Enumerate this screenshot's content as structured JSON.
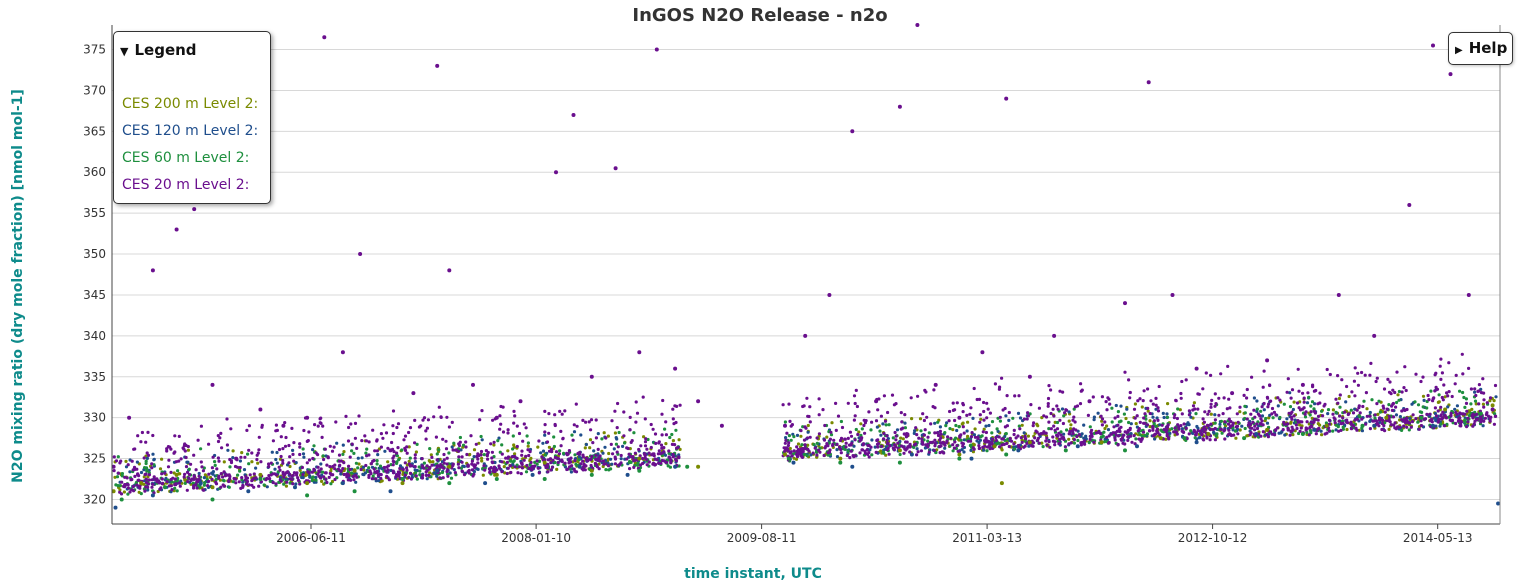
{
  "legend": {
    "title": "Legend",
    "toggle_icon": "triangle-down-icon"
  },
  "help": {
    "label": "Help",
    "toggle_icon": "triangle-right-icon"
  },
  "chart_data": {
    "type": "scatter",
    "title": "InGOS N2O Release - n2o",
    "xlabel": "time instant, UTC",
    "ylabel": "N2O mixing ratio (dry mole fraction) [nmol mol-1]",
    "xlim": [
      "2005-01-16",
      "2014-10-20"
    ],
    "ylim": [
      317,
      378
    ],
    "x_ticks": [
      "2006-06-11",
      "2008-01-10",
      "2009-08-11",
      "2011-03-13",
      "2012-10-12",
      "2014-05-13"
    ],
    "y_ticks": [
      320,
      325,
      330,
      335,
      340,
      345,
      350,
      355,
      360,
      365,
      370,
      375
    ],
    "grid": "horizontal",
    "legend_position": "top-left",
    "series": [
      {
        "name": "CES 200 m Level 2:",
        "color": "#7a8a00",
        "points": [
          [
            "2005-01-20",
            321.0
          ],
          [
            "2005-04-01",
            322.0
          ],
          [
            "2005-07-01",
            323.0
          ],
          [
            "2005-10-01",
            321.5
          ],
          [
            "2006-02-01",
            323.0
          ],
          [
            "2006-06-01",
            322.0
          ],
          [
            "2006-10-01",
            323.5
          ],
          [
            "2007-02-01",
            322.0
          ],
          [
            "2007-06-01",
            324.0
          ],
          [
            "2007-10-01",
            323.0
          ],
          [
            "2008-02-01",
            324.5
          ],
          [
            "2008-06-01",
            323.5
          ],
          [
            "2008-10-01",
            325.0
          ],
          [
            "2009-03-01",
            324.0
          ],
          [
            "2009-10-10",
            325.5
          ],
          [
            "2010-03-01",
            325.0
          ],
          [
            "2010-08-01",
            326.0
          ],
          [
            "2011-01-01",
            325.5
          ],
          [
            "2011-04-01",
            326.5
          ],
          [
            "2011-04-20",
            322.0
          ],
          [
            "2011-07-01",
            327.0
          ],
          [
            "2012-01-01",
            327.0
          ],
          [
            "2012-06-01",
            327.5
          ],
          [
            "2012-10-01",
            328.0
          ],
          [
            "2013-03-01",
            328.5
          ],
          [
            "2013-08-01",
            329.0
          ],
          [
            "2014-01-01",
            330.0
          ],
          [
            "2014-06-01",
            331.0
          ],
          [
            "2014-10-01",
            331.5
          ]
        ]
      },
      {
        "name": "CES 120 m Level 2:",
        "color": "#1f4e8c",
        "points": [
          [
            "2005-01-25",
            319.0
          ],
          [
            "2005-05-01",
            320.5
          ],
          [
            "2005-09-01",
            322.0
          ],
          [
            "2006-01-01",
            321.0
          ],
          [
            "2006-05-01",
            321.5
          ],
          [
            "2006-09-01",
            322.0
          ],
          [
            "2007-01-01",
            321.0
          ],
          [
            "2007-05-01",
            323.5
          ],
          [
            "2007-09-01",
            322.0
          ],
          [
            "2008-01-01",
            323.0
          ],
          [
            "2008-05-01",
            324.0
          ],
          [
            "2008-09-01",
            323.0
          ],
          [
            "2009-01-01",
            324.0
          ],
          [
            "2009-11-01",
            324.5
          ],
          [
            "2010-04-01",
            324.0
          ],
          [
            "2010-09-01",
            325.5
          ],
          [
            "2011-02-01",
            325.0
          ],
          [
            "2011-06-01",
            326.0
          ],
          [
            "2011-11-01",
            326.5
          ],
          [
            "2012-04-01",
            326.5
          ],
          [
            "2012-09-01",
            327.0
          ],
          [
            "2013-02-01",
            328.0
          ],
          [
            "2013-07-01",
            328.5
          ],
          [
            "2013-12-01",
            329.0
          ],
          [
            "2014-05-01",
            329.0
          ],
          [
            "2014-10-15",
            319.5
          ]
        ]
      },
      {
        "name": "CES 60 m Level 2:",
        "color": "#1e8f3e",
        "points": [
          [
            "2005-02-10",
            320.0
          ],
          [
            "2005-06-01",
            321.5
          ],
          [
            "2005-10-01",
            320.0
          ],
          [
            "2006-02-01",
            322.5
          ],
          [
            "2006-06-01",
            320.5
          ],
          [
            "2006-10-01",
            321.0
          ],
          [
            "2007-02-01",
            322.5
          ],
          [
            "2007-06-01",
            322.0
          ],
          [
            "2007-10-01",
            322.5
          ],
          [
            "2008-02-01",
            322.5
          ],
          [
            "2008-06-01",
            323.0
          ],
          [
            "2008-10-01",
            323.5
          ],
          [
            "2009-02-01",
            324.0
          ],
          [
            "2009-10-20",
            325.0
          ],
          [
            "2010-03-01",
            324.5
          ],
          [
            "2010-08-01",
            324.5
          ],
          [
            "2011-01-01",
            325.0
          ],
          [
            "2011-05-01",
            325.5
          ],
          [
            "2011-10-01",
            326.0
          ],
          [
            "2012-03-01",
            326.0
          ],
          [
            "2012-08-01",
            327.5
          ],
          [
            "2013-01-01",
            327.5
          ],
          [
            "2013-06-01",
            328.0
          ],
          [
            "2013-11-01",
            329.0
          ],
          [
            "2014-04-01",
            330.0
          ],
          [
            "2014-09-01",
            330.5
          ]
        ]
      },
      {
        "name": "CES 20 m Level 2:",
        "color": "#6a0f8e",
        "points": [
          [
            "2005-01-20",
            324.0
          ],
          [
            "2005-03-01",
            330.0
          ],
          [
            "2005-05-01",
            348.0
          ],
          [
            "2005-07-01",
            353.0
          ],
          [
            "2005-08-15",
            355.5
          ],
          [
            "2005-10-01",
            334.0
          ],
          [
            "2005-12-01",
            325.0
          ],
          [
            "2006-02-01",
            331.0
          ],
          [
            "2006-04-01",
            329.0
          ],
          [
            "2006-06-01",
            330.0
          ],
          [
            "2006-07-15",
            376.5
          ],
          [
            "2006-09-01",
            338.0
          ],
          [
            "2006-10-15",
            350.0
          ],
          [
            "2007-01-01",
            326.0
          ],
          [
            "2007-03-01",
            333.0
          ],
          [
            "2007-05-01",
            373.0
          ],
          [
            "2007-06-01",
            348.0
          ],
          [
            "2007-08-01",
            334.0
          ],
          [
            "2007-10-01",
            330.0
          ],
          [
            "2007-12-01",
            332.0
          ],
          [
            "2008-03-01",
            360.0
          ],
          [
            "2008-04-15",
            367.0
          ],
          [
            "2008-06-01",
            335.0
          ],
          [
            "2008-08-01",
            360.5
          ],
          [
            "2008-10-01",
            338.0
          ],
          [
            "2008-11-15",
            375.0
          ],
          [
            "2009-01-01",
            336.0
          ],
          [
            "2009-03-01",
            332.0
          ],
          [
            "2009-05-01",
            329.0
          ],
          [
            "2009-10-10",
            329.0
          ],
          [
            "2009-12-01",
            340.0
          ],
          [
            "2010-02-01",
            345.0
          ],
          [
            "2010-04-01",
            365.0
          ],
          [
            "2010-06-01",
            332.0
          ],
          [
            "2010-08-01",
            368.0
          ],
          [
            "2010-09-15",
            378.0
          ],
          [
            "2010-11-01",
            334.0
          ],
          [
            "2011-01-01",
            330.0
          ],
          [
            "2011-03-01",
            338.0
          ],
          [
            "2011-05-01",
            369.0
          ],
          [
            "2011-07-01",
            335.0
          ],
          [
            "2011-09-01",
            340.0
          ],
          [
            "2011-12-01",
            332.0
          ],
          [
            "2012-03-01",
            344.0
          ],
          [
            "2012-05-01",
            371.0
          ],
          [
            "2012-07-01",
            345.0
          ],
          [
            "2012-09-01",
            336.0
          ],
          [
            "2012-12-01",
            333.0
          ],
          [
            "2013-03-01",
            337.0
          ],
          [
            "2013-06-01",
            334.0
          ],
          [
            "2013-09-01",
            345.0
          ],
          [
            "2013-12-01",
            340.0
          ],
          [
            "2014-03-01",
            356.0
          ],
          [
            "2014-05-01",
            375.5
          ],
          [
            "2014-06-15",
            372.0
          ],
          [
            "2014-08-01",
            345.0
          ],
          [
            "2014-10-01",
            331.0
          ]
        ]
      }
    ]
  }
}
